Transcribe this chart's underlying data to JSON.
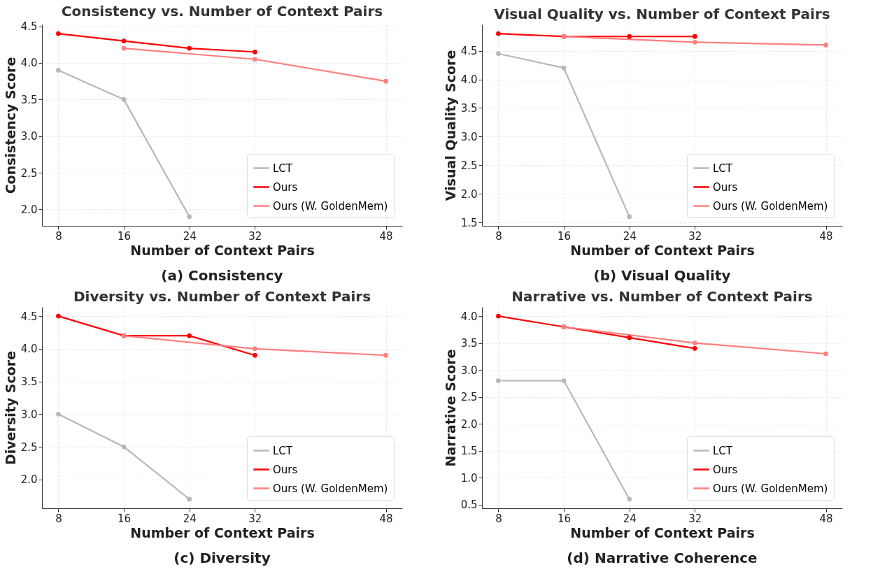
{
  "chart_data": [
    {
      "type": "line",
      "title": "Consistency vs. Number of Context Pairs",
      "xlabel": "Number of Context Pairs",
      "ylabel": "Consistency Score",
      "annotations": [
        "(a)  Consistency"
      ],
      "xlim": [
        6,
        50
      ],
      "xticks": [
        8,
        16,
        24,
        32,
        48
      ],
      "ylim": [
        1.775,
        4.525
      ],
      "yticks": [
        {
          "value": 2,
          "label": "2.0"
        },
        2.5,
        {
          "value": 3,
          "label": "3.0"
        },
        3.5,
        {
          "value": 4,
          "label": "4.0"
        },
        4.5
      ],
      "grid": true,
      "legend": "bottom right",
      "marker": "circle",
      "series": [
        {
          "name": "LCT",
          "color": "#b8b8b8",
          "x": [
            8,
            16,
            24
          ],
          "values": [
            3.9,
            3.5,
            1.9
          ]
        },
        {
          "name": "Ours",
          "color": "#ff0000",
          "x": [
            8,
            16,
            24,
            32
          ],
          "values": [
            4.4,
            4.3,
            4.2,
            4.15
          ]
        },
        {
          "name": "Ours (W. GoldenMem)",
          "color": "#ff7f7f",
          "x": [
            16,
            32,
            48
          ],
          "values": [
            4.2,
            4.05,
            3.75
          ]
        }
      ]
    },
    {
      "type": "line",
      "title": "Visual Quality vs. Number of Context Pairs",
      "xlabel": "Number of Context Pairs",
      "ylabel": "Visual Quality Score",
      "annotations": [
        "(b)  Visual Quality"
      ],
      "xlim": [
        6,
        50
      ],
      "xticks": [
        8,
        16,
        24,
        32,
        48
      ],
      "ylim": [
        1.44,
        4.96
      ],
      "yticks": [
        1.5,
        {
          "value": 2,
          "label": "2.0"
        },
        2.5,
        {
          "value": 3,
          "label": "3.0"
        },
        3.5,
        {
          "value": 4,
          "label": "4.0"
        },
        4.5
      ],
      "grid": true,
      "legend": "bottom right",
      "marker": "circle",
      "series": [
        {
          "name": "LCT",
          "color": "#b8b8b8",
          "x": [
            8,
            16,
            24
          ],
          "values": [
            4.45,
            4.2,
            1.6
          ]
        },
        {
          "name": "Ours",
          "color": "#ff0000",
          "x": [
            8,
            16,
            24,
            32
          ],
          "values": [
            4.8,
            4.75,
            4.75,
            4.75
          ]
        },
        {
          "name": "Ours (W. GoldenMem)",
          "color": "#ff7f7f",
          "x": [
            16,
            32,
            48
          ],
          "values": [
            4.75,
            4.65,
            4.6
          ]
        }
      ]
    },
    {
      "type": "line",
      "title": "Diversity vs. Number of Context Pairs",
      "xlabel": "Number of Context Pairs",
      "ylabel": "Diversity Score",
      "annotations": [
        "(c)  Diversity"
      ],
      "xlim": [
        6,
        50
      ],
      "xticks": [
        8,
        16,
        24,
        32,
        48
      ],
      "ylim": [
        1.56,
        4.64
      ],
      "yticks": [
        {
          "value": 2,
          "label": "2.0"
        },
        2.5,
        {
          "value": 3,
          "label": "3.0"
        },
        3.5,
        {
          "value": 4,
          "label": "4.0"
        },
        4.5
      ],
      "grid": true,
      "legend": "bottom right",
      "marker": "circle",
      "series": [
        {
          "name": "LCT",
          "color": "#b8b8b8",
          "x": [
            8,
            16,
            24
          ],
          "values": [
            3.0,
            2.5,
            1.7
          ]
        },
        {
          "name": "Ours",
          "color": "#ff0000",
          "x": [
            8,
            16,
            24,
            32
          ],
          "values": [
            4.5,
            4.2,
            4.2,
            3.9
          ]
        },
        {
          "name": "Ours (W. GoldenMem)",
          "color": "#ff7f7f",
          "x": [
            16,
            32,
            48
          ],
          "values": [
            4.2,
            4.0,
            3.9
          ]
        }
      ]
    },
    {
      "type": "line",
      "title": "Narrative vs. Number of Context Pairs",
      "xlabel": "Number of Context Pairs",
      "ylabel": "Narrative Score",
      "annotations": [
        "(d)  Narrative Coherence"
      ],
      "xlim": [
        6,
        50
      ],
      "xticks": [
        8,
        16,
        24,
        32,
        48
      ],
      "ylim": [
        0.43,
        4.17
      ],
      "yticks": [
        0.5,
        {
          "value": 1,
          "label": "1.0"
        },
        1.5,
        {
          "value": 2,
          "label": "2.0"
        },
        2.5,
        {
          "value": 3,
          "label": "3.0"
        },
        3.5,
        {
          "value": 4,
          "label": "4.0"
        }
      ],
      "grid": true,
      "legend": "bottom right",
      "marker": "circle",
      "series": [
        {
          "name": "LCT",
          "color": "#b8b8b8",
          "x": [
            8,
            16,
            24
          ],
          "values": [
            2.8,
            2.8,
            0.6
          ]
        },
        {
          "name": "Ours",
          "color": "#ff0000",
          "x": [
            8,
            16,
            24,
            32
          ],
          "values": [
            4.0,
            3.8,
            3.6,
            3.4
          ]
        },
        {
          "name": "Ours (W. GoldenMem)",
          "color": "#ff7f7f",
          "x": [
            16,
            32,
            48
          ],
          "values": [
            3.8,
            3.5,
            3.3
          ]
        }
      ]
    }
  ]
}
